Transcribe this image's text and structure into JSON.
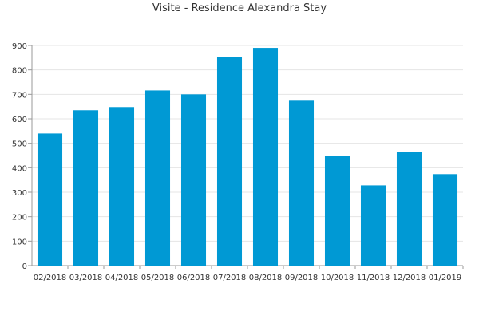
{
  "chart_data": {
    "type": "bar",
    "title": "Visite - Residence Alexandra Stay",
    "xlabel": "",
    "ylabel": "",
    "categories": [
      "02/2018",
      "03/2018",
      "04/2018",
      "05/2018",
      "06/2018",
      "07/2018",
      "08/2018",
      "09/2018",
      "10/2018",
      "11/2018",
      "12/2018",
      "01/2019"
    ],
    "values": [
      540,
      635,
      648,
      716,
      700,
      853,
      890,
      674,
      450,
      328,
      465,
      374
    ],
    "ylim": [
      0,
      900
    ],
    "yticks": [
      0,
      100,
      200,
      300,
      400,
      500,
      600,
      700,
      800,
      900
    ],
    "grid": true,
    "bar_color": "#0099d4"
  }
}
